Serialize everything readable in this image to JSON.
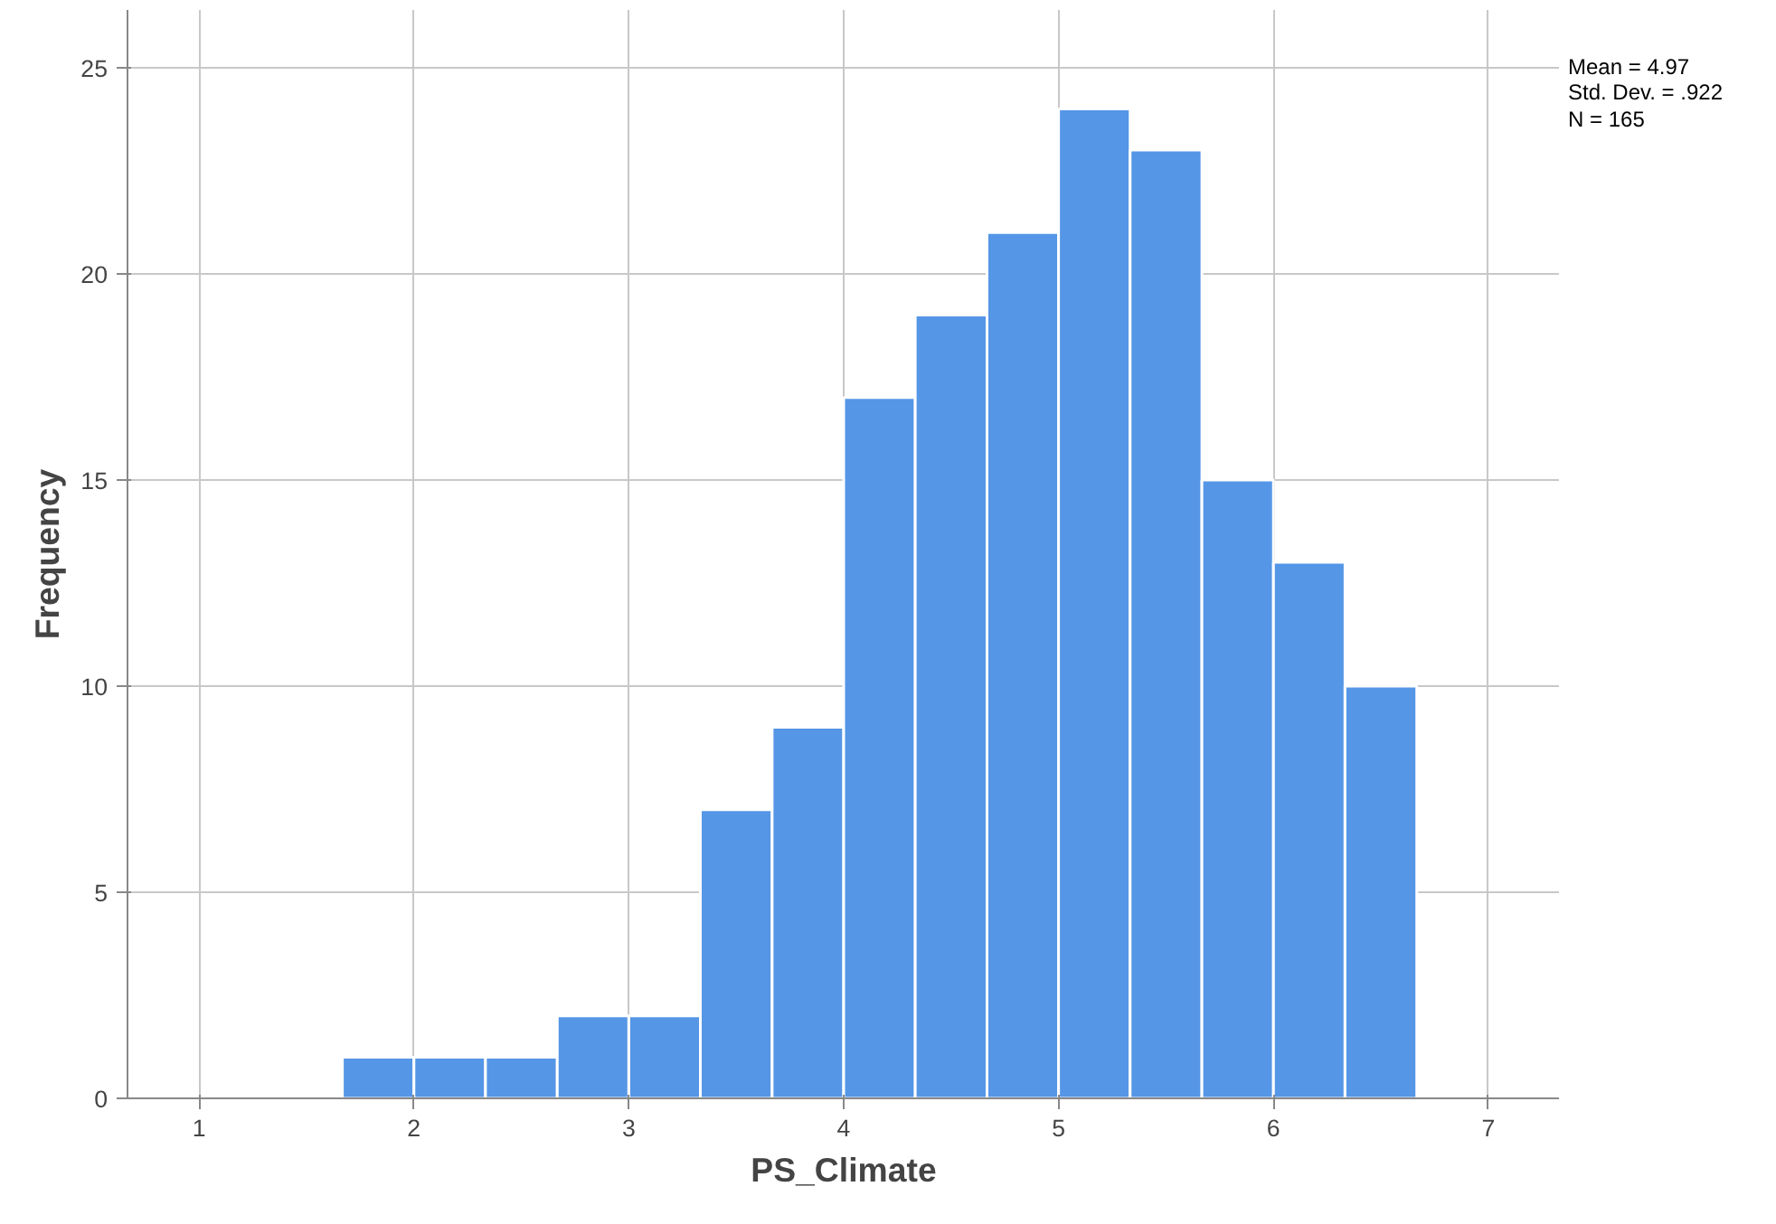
{
  "chart_data": {
    "type": "histogram",
    "xlabel": "PS_Climate",
    "ylabel": "Frequency",
    "bins": [
      1.667,
      2,
      2.333,
      2.667,
      3,
      3.333,
      3.667,
      4,
      4.333,
      4.667,
      5,
      5.333,
      5.667,
      6,
      6.333,
      6.667
    ],
    "values": [
      1,
      1,
      1,
      2,
      2,
      7,
      9,
      17,
      19,
      21,
      24,
      23,
      15,
      13,
      10
    ],
    "color": "#5596e6",
    "xlim": [
      0.667,
      7.333
    ],
    "xticks": [
      1,
      2,
      3,
      4,
      5,
      6,
      7
    ],
    "ylim": [
      0,
      26.4
    ],
    "yticks": [
      0,
      5,
      10,
      15,
      20,
      25
    ],
    "grid": true,
    "annotations": [
      "Mean = 4.97",
      "Std. Dev. = .922",
      "N = 165"
    ]
  }
}
